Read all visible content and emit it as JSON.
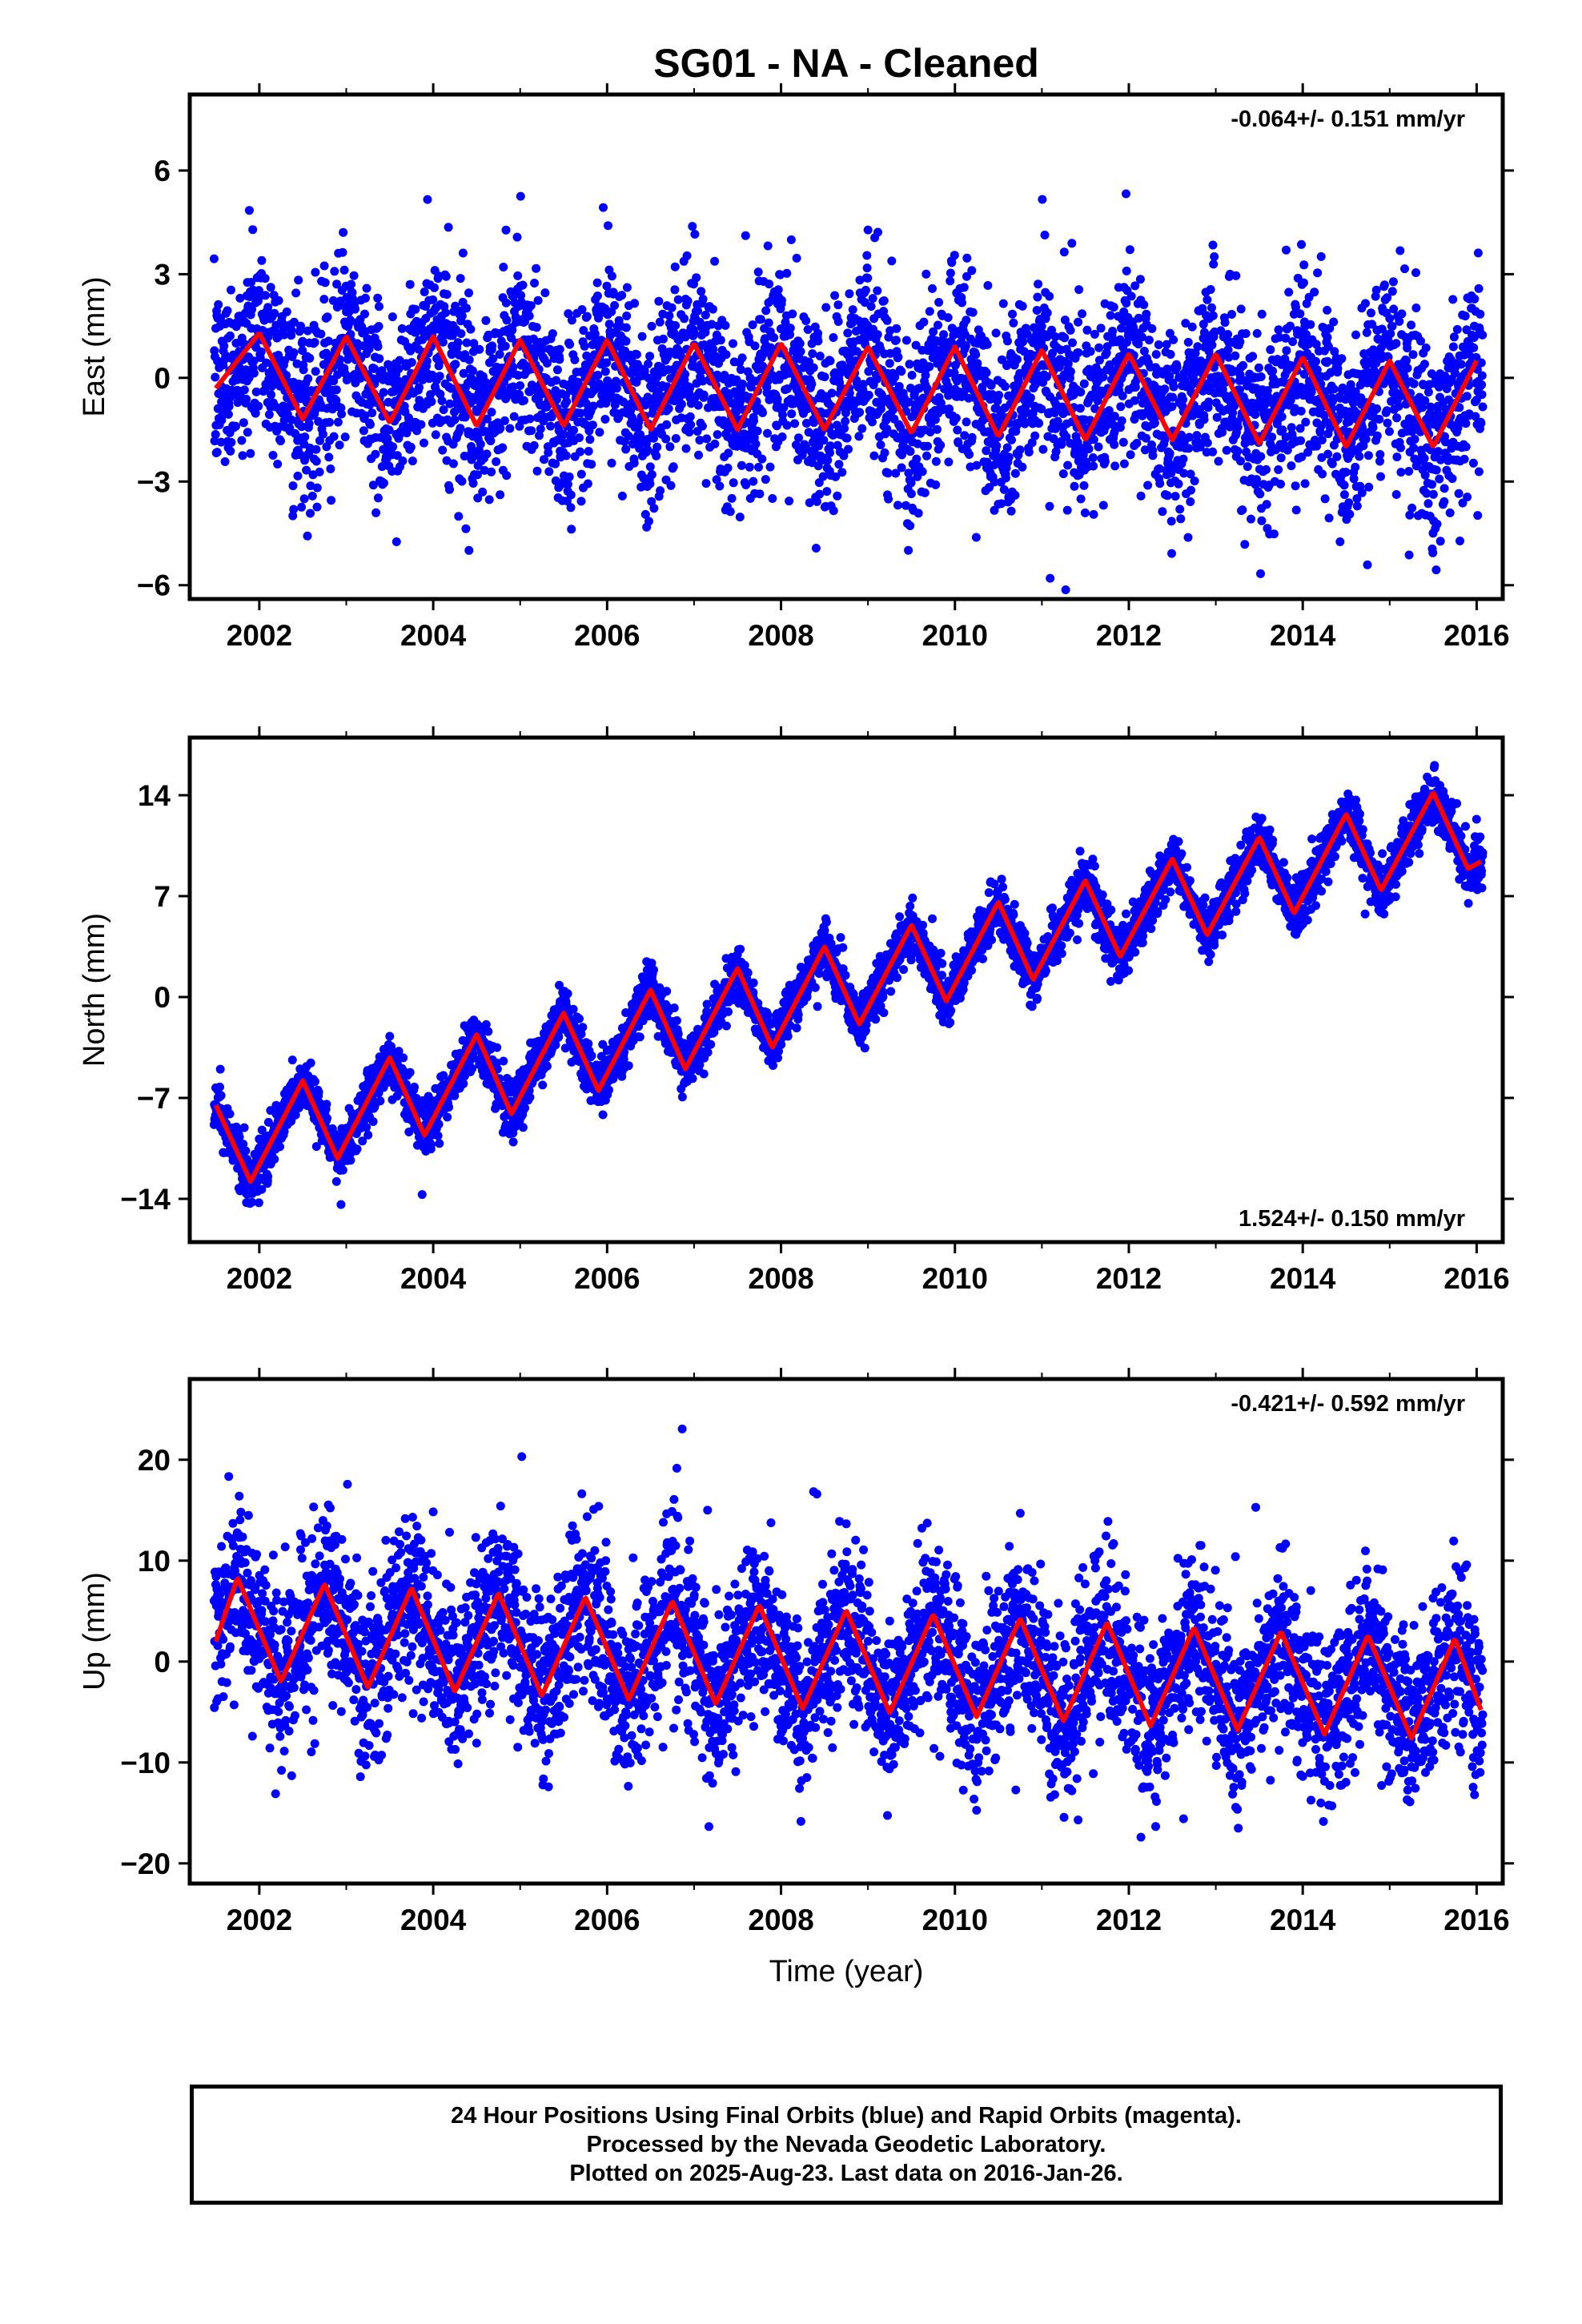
{
  "chart_data": [
    {
      "type": "scatter",
      "panel": "east",
      "title": "SG01  - NA - Cleaned",
      "ylabel": "East (mm)",
      "xlabel": "",
      "xlim": [
        2001.2,
        2016.3
      ],
      "ylim": [
        -6.4,
        8.2
      ],
      "xticks": [
        2002,
        2004,
        2006,
        2008,
        2010,
        2012,
        2014,
        2016
      ],
      "yticks": [
        6,
        3,
        0,
        -3,
        -6
      ],
      "ytick_labels": [
        "6",
        "3",
        "0",
        "−3",
        "−6"
      ],
      "rate_text": "-0.064+/- 0.151 mm/yr",
      "rate_position": "top-right",
      "grid": false,
      "series": [
        {
          "kind": "daily_positions",
          "color": "#0000ff",
          "x_start": 2001.48,
          "x_end": 2016.07,
          "count": 4500,
          "trend_mm_per_yr": -0.064,
          "seasonal_amp_mm": 1.4,
          "scatter_sd_mm": 1.35
        },
        {
          "kind": "model_fit",
          "color": "#ff0000",
          "x": [
            2001.5,
            2002.0,
            2002.5,
            2003.0,
            2003.5,
            2004.0,
            2004.5,
            2005.0,
            2005.5,
            2006.0,
            2006.5,
            2007.0,
            2007.5,
            2008.0,
            2008.5,
            2009.0,
            2009.5,
            2010.0,
            2010.5,
            2011.0,
            2011.5,
            2012.0,
            2012.5,
            2013.0,
            2013.5,
            2014.0,
            2014.5,
            2015.0,
            2015.5,
            2016.0
          ],
          "values": [
            -0.3,
            1.3,
            -1.2,
            1.2,
            -1.3,
            1.2,
            -1.4,
            1.1,
            -1.4,
            1.1,
            -1.5,
            1.0,
            -1.5,
            1.0,
            -1.5,
            0.9,
            -1.6,
            0.9,
            -1.7,
            0.8,
            -1.8,
            0.7,
            -1.8,
            0.7,
            -1.9,
            0.6,
            -2.0,
            0.5,
            -2.0,
            0.5
          ]
        }
      ]
    },
    {
      "type": "scatter",
      "panel": "north",
      "ylabel": "North (mm)",
      "xlabel": "",
      "xlim": [
        2001.2,
        2016.3
      ],
      "ylim": [
        -17,
        18
      ],
      "xticks": [
        2002,
        2004,
        2006,
        2008,
        2010,
        2012,
        2014,
        2016
      ],
      "yticks": [
        14,
        7,
        0,
        -7,
        -14
      ],
      "ytick_labels": [
        "14",
        "7",
        "0",
        "−7",
        "−14"
      ],
      "rate_text": "1.524+/- 0.150 mm/yr",
      "rate_position": "bottom-right",
      "grid": false,
      "series": [
        {
          "kind": "daily_positions",
          "color": "#0000ff",
          "x_start": 2001.48,
          "x_end": 2016.07,
          "count": 4500,
          "trend_mm_per_yr": 1.524,
          "seasonal_amp_mm": 3.5,
          "scatter_sd_mm": 0.9
        },
        {
          "kind": "model_fit",
          "color": "#ff0000",
          "x": [
            2001.5,
            2001.9,
            2002.5,
            2002.9,
            2003.5,
            2003.9,
            2004.5,
            2004.9,
            2005.5,
            2005.9,
            2006.5,
            2006.9,
            2007.5,
            2007.9,
            2008.5,
            2008.9,
            2009.5,
            2009.9,
            2010.5,
            2010.9,
            2011.5,
            2011.9,
            2012.5,
            2012.9,
            2013.5,
            2013.9,
            2014.5,
            2014.9,
            2015.5,
            2015.9,
            2016.05
          ],
          "values": [
            -7.5,
            -12.8,
            -5.8,
            -11.2,
            -4.2,
            -9.6,
            -2.6,
            -8.1,
            -1.1,
            -6.5,
            0.5,
            -5.0,
            2.0,
            -3.5,
            3.5,
            -1.9,
            5.0,
            -0.3,
            6.6,
            1.2,
            8.1,
            2.8,
            9.6,
            4.3,
            11.1,
            5.8,
            12.7,
            7.4,
            14.2,
            8.9,
            9.4
          ]
        }
      ]
    },
    {
      "type": "scatter",
      "panel": "up",
      "ylabel": "Up (mm)",
      "xlabel": "Time (year)",
      "xlim": [
        2001.2,
        2016.3
      ],
      "ylim": [
        -22,
        28
      ],
      "xticks": [
        2002,
        2004,
        2006,
        2008,
        2010,
        2012,
        2014,
        2016
      ],
      "yticks": [
        20,
        10,
        0,
        -10,
        -20
      ],
      "ytick_labels": [
        "20",
        "10",
        "0",
        "−10",
        "−20"
      ],
      "rate_text": "-0.421+/- 0.592 mm/yr",
      "rate_position": "top-right",
      "grid": false,
      "series": [
        {
          "kind": "daily_positions",
          "color": "#0000ff",
          "x_start": 2001.48,
          "x_end": 2016.07,
          "count": 4500,
          "trend_mm_per_yr": -0.421,
          "seasonal_amp_mm": 5.0,
          "scatter_sd_mm": 4.2
        },
        {
          "kind": "model_fit",
          "color": "#ff0000",
          "x": [
            2001.5,
            2001.75,
            2002.25,
            2002.75,
            2003.25,
            2003.75,
            2004.25,
            2004.75,
            2005.25,
            2005.75,
            2006.25,
            2006.75,
            2007.25,
            2007.75,
            2008.25,
            2008.75,
            2009.25,
            2009.75,
            2010.25,
            2010.75,
            2011.25,
            2011.75,
            2012.25,
            2012.75,
            2013.25,
            2013.75,
            2014.25,
            2014.75,
            2015.25,
            2015.75,
            2016.05
          ],
          "values": [
            2.0,
            8.3,
            -2.0,
            7.7,
            -2.6,
            7.3,
            -3.0,
            6.8,
            -3.4,
            6.4,
            -3.8,
            6.0,
            -4.2,
            5.6,
            -4.7,
            5.1,
            -5.1,
            4.7,
            -5.5,
            4.3,
            -5.9,
            3.9,
            -6.4,
            3.4,
            -6.8,
            3.0,
            -7.2,
            2.6,
            -7.6,
            2.3,
            -4.8
          ]
        }
      ]
    }
  ],
  "footer": {
    "line1": "24 Hour Positions Using Final Orbits (blue) and Rapid Orbits (magenta).",
    "line2": "Processed by the Nevada Geodetic Laboratory.",
    "line3": "Plotted on 2025-Aug-23. Last data on 2016-Jan-26."
  }
}
